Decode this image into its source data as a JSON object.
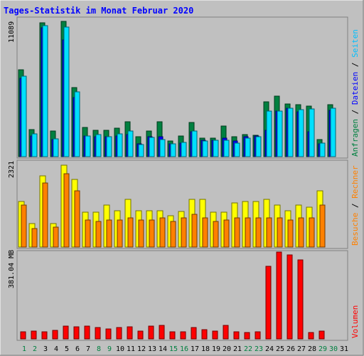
{
  "title": "Tages-Statistik im Monat Februar 2020",
  "colors": {
    "background": "#c0c0c0",
    "frame_light": "#ffffff",
    "frame_dark": "#808080",
    "title": "#0000ff",
    "hits_back": "#008040",
    "files_front": "#00e0ff",
    "pages_back": "#00c0ff",
    "sites_back": "#ffff00",
    "visits_front": "#ff8000",
    "kbytes": "#ff0000",
    "weekday_label": "#000000",
    "weekend_label": "#008040"
  },
  "legend_top": {
    "parts": [
      {
        "text": "Anfragen",
        "color": "#008040"
      },
      {
        "text": "Dateien",
        "color": "#0000ff"
      },
      {
        "text": "Seiten",
        "color": "#00c0ff"
      }
    ],
    "separator": " / "
  },
  "legend_mid": {
    "parts": [
      {
        "text": "Besuche",
        "color": "#ff8000"
      },
      {
        "text": "Rechner",
        "color": "#ff8000"
      }
    ],
    "separator": " / "
  },
  "legend_bot": {
    "parts": [
      {
        "text": "Volumen",
        "color": "#ff0000"
      }
    ]
  },
  "chart_data": {
    "type": "bar",
    "categories": [
      "1",
      "2",
      "3",
      "4",
      "5",
      "6",
      "7",
      "8",
      "9",
      "10",
      "11",
      "12",
      "13",
      "14",
      "15",
      "16",
      "17",
      "18",
      "19",
      "20",
      "21",
      "22",
      "23",
      "24",
      "25",
      "26",
      "27",
      "28",
      "29",
      "30",
      "31"
    ],
    "weekend_days": [
      "1",
      "2",
      "8",
      "9",
      "15",
      "16",
      "22",
      "23",
      "29",
      "30"
    ],
    "panels": [
      {
        "id": "requests",
        "ymax_label": "11089",
        "ymax": 11089,
        "series": [
          {
            "name": "Anfragen",
            "color": "#008040",
            "values": [
              7050,
              2200,
              10880,
              2100,
              11000,
              5600,
              2350,
              2150,
              2150,
              2300,
              2850,
              1600,
              2100,
              2850,
              1250,
              1650,
              2800,
              1500,
              1500,
              2500,
              1600,
              1800,
              1750,
              4450,
              4900,
              4250,
              4200,
              4100,
              1400,
              4200,
              null
            ]
          },
          {
            "name": "Dateien",
            "color": "#0000ff",
            "values": [
              6350,
              1700,
              10450,
              1400,
              9500,
              4800,
              1700,
              1600,
              1600,
              1650,
              1800,
              1050,
              1600,
              1600,
              1050,
              1100,
              2050,
              1350,
              1300,
              1500,
              1250,
              1600,
              1650,
              2150,
              3700,
              3900,
              3650,
              2000,
              1050,
              3750,
              null
            ]
          },
          {
            "name": "Seiten",
            "color": "#00c0ff",
            "values": [
              6550,
              1850,
              10650,
              1450,
              10500,
              5250,
              1700,
              1800,
              1600,
              1850,
              2100,
              1000,
              1550,
              1400,
              1050,
              1150,
              2100,
              1250,
              1300,
              1350,
              1100,
              1500,
              1600,
              3700,
              3700,
              3900,
              3800,
              3850,
              1100,
              3900,
              null
            ]
          }
        ]
      },
      {
        "id": "visits",
        "ymax_label": "2321",
        "ymax": 2321,
        "series": [
          {
            "name": "Seiten",
            "color": "#ffff00",
            "values": [
              1250,
              650,
              1950,
              650,
              2250,
              1850,
              950,
              950,
              1150,
              1000,
              1300,
              1000,
              1000,
              1000,
              850,
              970,
              1300,
              1300,
              950,
              950,
              1200,
              1250,
              1250,
              1300,
              1150,
              1000,
              1150,
              1100,
              1550,
              null,
              null
            ]
          },
          {
            "name": "Besuche",
            "color": "#ff8000",
            "values": [
              1150,
              500,
              1750,
              550,
              2000,
              1550,
              750,
              700,
              750,
              750,
              800,
              750,
              750,
              800,
              700,
              800,
              900,
              800,
              700,
              750,
              800,
              800,
              800,
              800,
              800,
              750,
              800,
              800,
              1150,
              null,
              null
            ]
          }
        ]
      },
      {
        "id": "volume",
        "ymax_label": "381.04 MB",
        "ymax": 381.04,
        "series": [
          {
            "name": "Volumen",
            "color": "#ff0000",
            "values": [
              30,
              34,
              30,
              38,
              58,
              53,
              58,
              49,
              45,
              49,
              55,
              34,
              58,
              60,
              30,
              30,
              50,
              40,
              34,
              60,
              30,
              28,
              32,
              320,
              383,
              372,
              350,
              28,
              34,
              null,
              null
            ]
          }
        ]
      }
    ]
  }
}
